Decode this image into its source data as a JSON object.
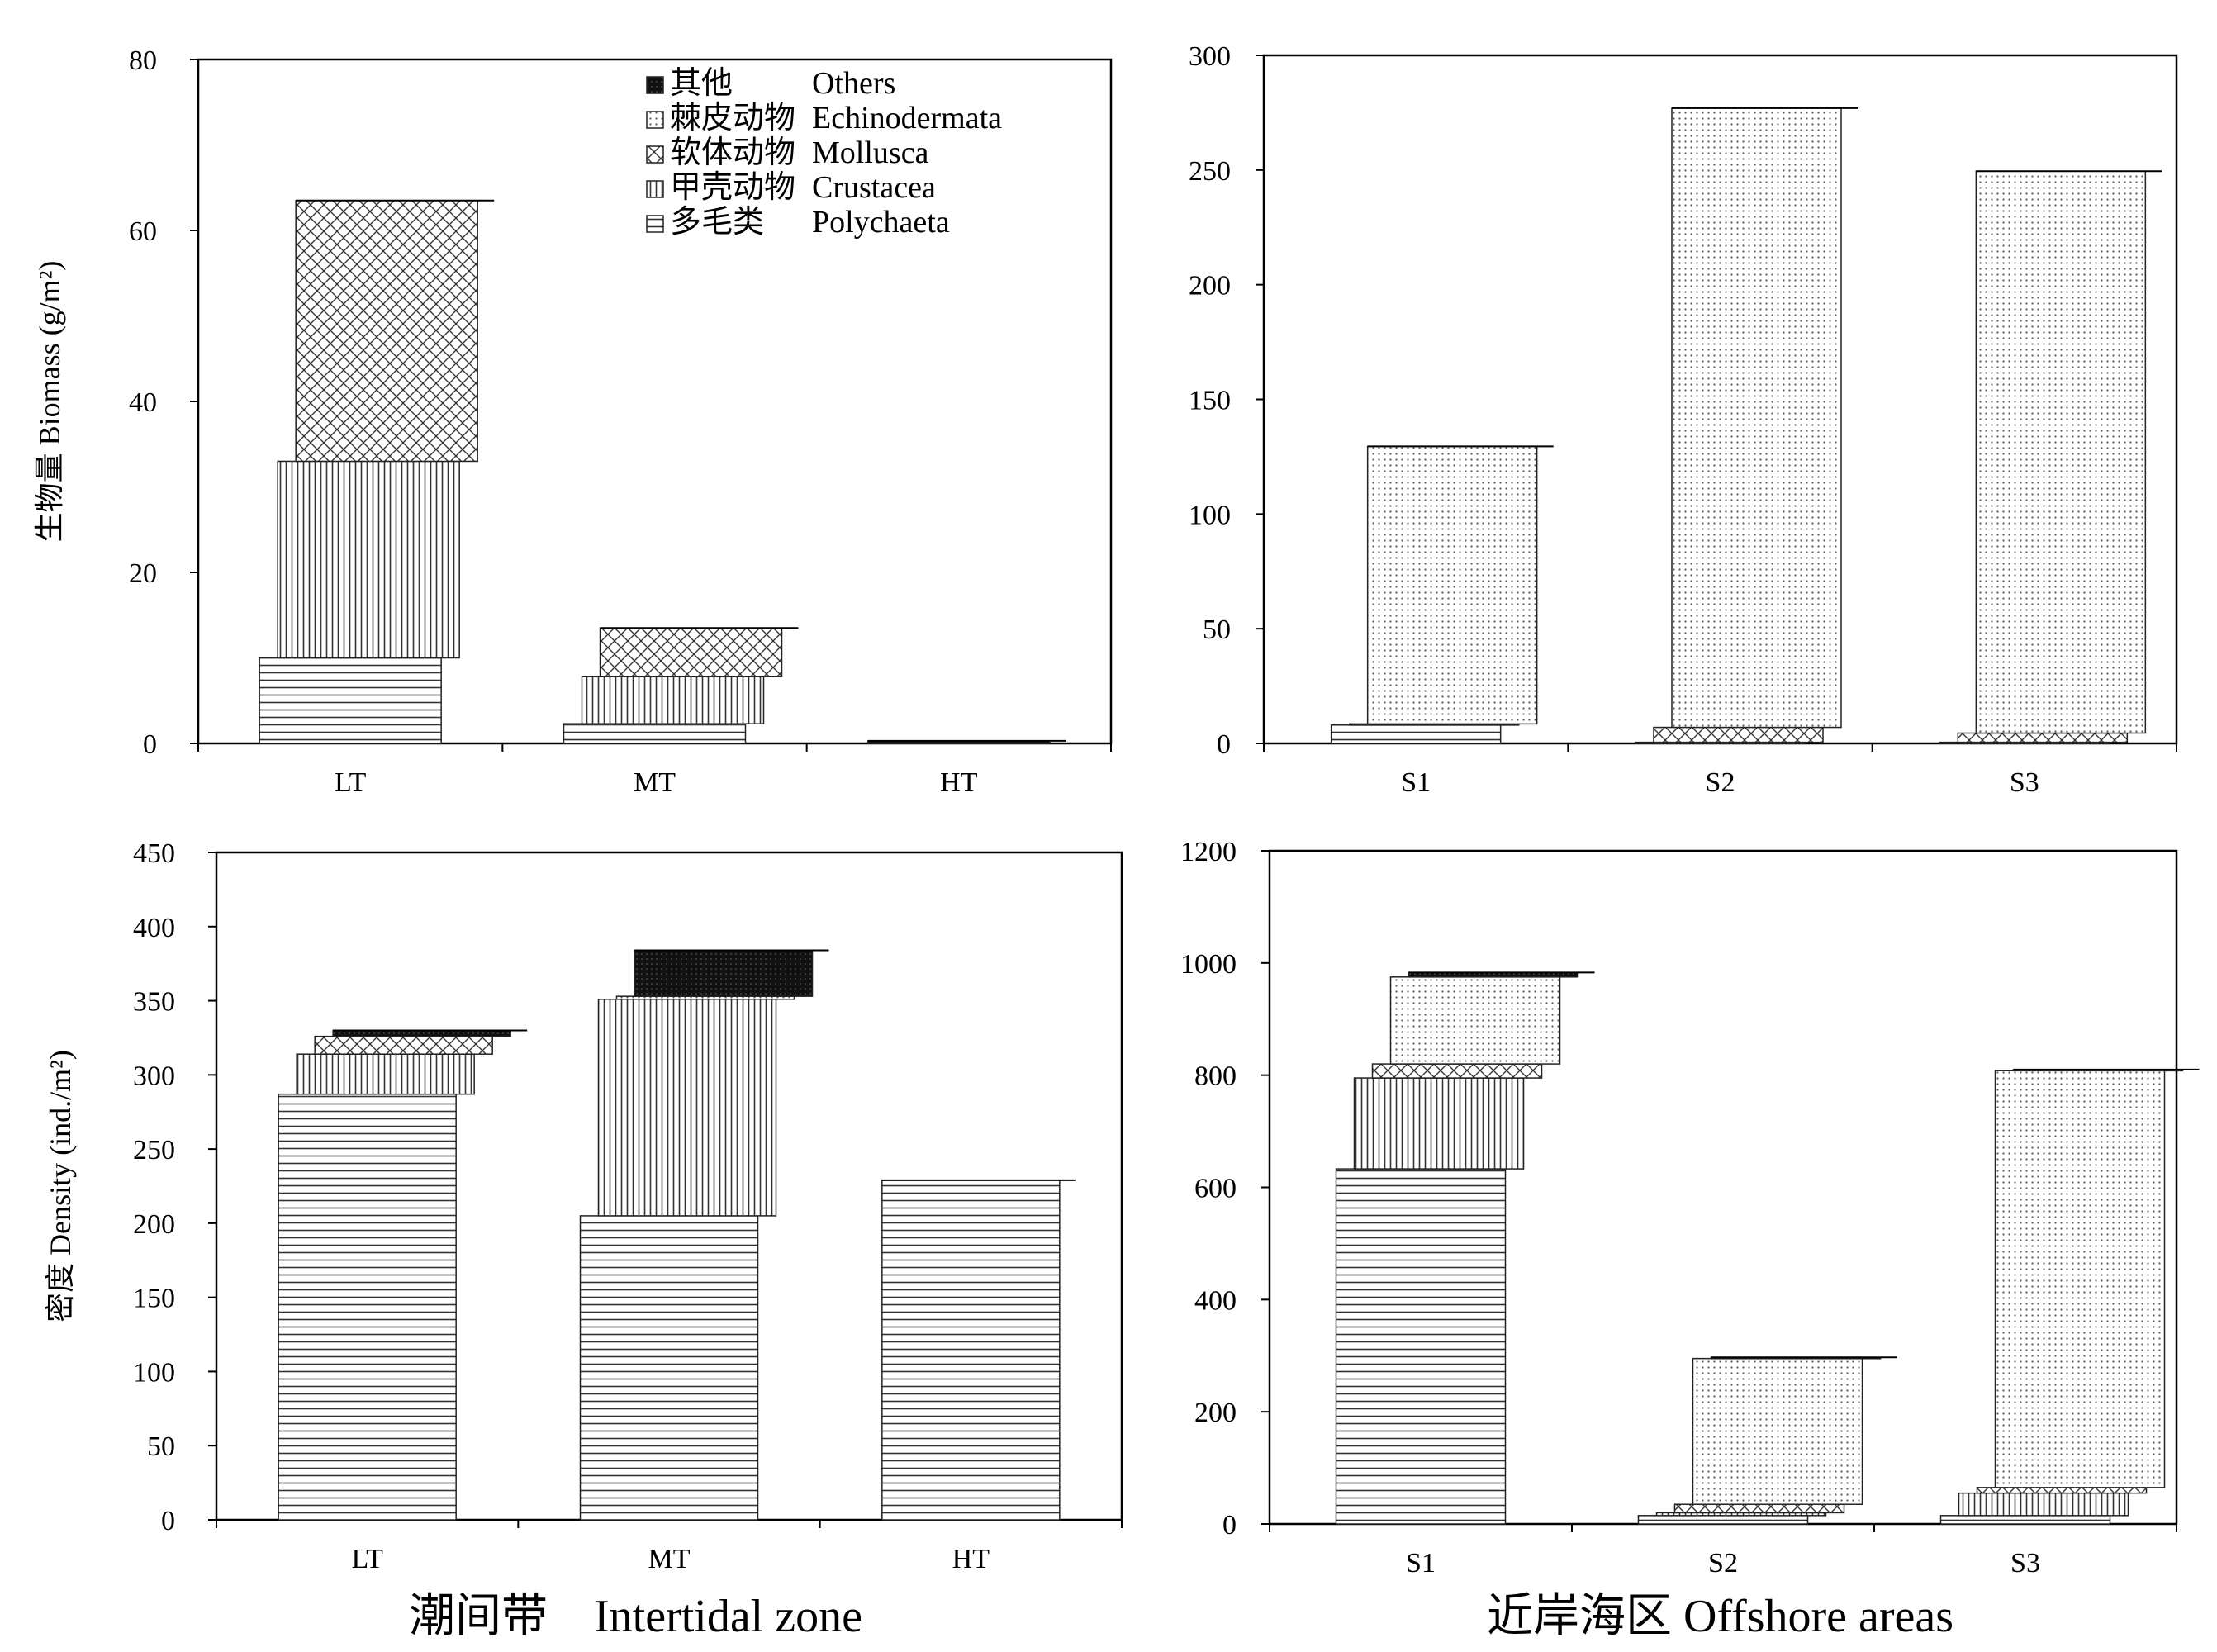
{
  "figure_captions": {
    "left": "潮间带　Intertidal zone",
    "right": "近岸海区  Offshore areas"
  },
  "legend": {
    "items": [
      {
        "key": "others",
        "cn": "其他",
        "en": "Others",
        "pattern": "black"
      },
      {
        "key": "echinodermata",
        "cn": "棘皮动物",
        "en": "Echinodermata",
        "pattern": "dots"
      },
      {
        "key": "mollusca",
        "cn": "软体动物",
        "en": "Mollusca",
        "pattern": "cross"
      },
      {
        "key": "crustacea",
        "cn": "甲壳动物",
        "en": "Crustacea",
        "pattern": "vlines"
      },
      {
        "key": "polychaeta",
        "cn": "多毛类",
        "en": "Polychaeta",
        "pattern": "hlines"
      }
    ]
  },
  "chart_data": [
    {
      "id": "biomass-intertidal",
      "type": "bar",
      "stacked": true,
      "ylabel": "生物量 Biomass (g/m²)",
      "ylim": [
        0,
        80
      ],
      "yticks": [
        0,
        20,
        40,
        60,
        80
      ],
      "categories": [
        "LT",
        "MT",
        "HT"
      ],
      "series": [
        {
          "name": "Polychaeta",
          "values": [
            10,
            2.3,
            0
          ]
        },
        {
          "name": "Crustacea",
          "values": [
            23,
            5.5,
            0
          ]
        },
        {
          "name": "Mollusca",
          "values": [
            30.5,
            5.7,
            0
          ]
        },
        {
          "name": "Echinodermata",
          "values": [
            0,
            0,
            0
          ]
        },
        {
          "name": "Others",
          "values": [
            0,
            0,
            0.3
          ]
        }
      ],
      "legend_position": "top-right"
    },
    {
      "id": "biomass-offshore",
      "type": "bar",
      "stacked": true,
      "ylabel": "",
      "ylim": [
        0,
        300
      ],
      "yticks": [
        0,
        50,
        100,
        150,
        200,
        250,
        300
      ],
      "categories": [
        "S1",
        "S2",
        "S3"
      ],
      "series": [
        {
          "name": "Polychaeta",
          "values": [
            8,
            0.5,
            0.5
          ]
        },
        {
          "name": "Crustacea",
          "values": [
            0.5,
            0,
            0
          ]
        },
        {
          "name": "Mollusca",
          "values": [
            0,
            6.5,
            4
          ]
        },
        {
          "name": "Echinodermata",
          "values": [
            121,
            270,
            245
          ]
        },
        {
          "name": "Others",
          "values": [
            0,
            0,
            0
          ]
        }
      ]
    },
    {
      "id": "density-intertidal",
      "type": "bar",
      "stacked": true,
      "ylabel": "密度 Density (ind./m²)",
      "ylim": [
        0,
        450
      ],
      "yticks": [
        0,
        50,
        100,
        150,
        200,
        250,
        300,
        350,
        400,
        450
      ],
      "categories": [
        "LT",
        "MT",
        "HT"
      ],
      "series": [
        {
          "name": "Polychaeta",
          "values": [
            287,
            205,
            229
          ]
        },
        {
          "name": "Crustacea",
          "values": [
            27,
            146,
            0
          ]
        },
        {
          "name": "Mollusca",
          "values": [
            12,
            0,
            0
          ]
        },
        {
          "name": "Echinodermata",
          "values": [
            0,
            2,
            0
          ]
        },
        {
          "name": "Others",
          "values": [
            4,
            31,
            0
          ]
        }
      ]
    },
    {
      "id": "density-offshore",
      "type": "bar",
      "stacked": true,
      "ylabel": "",
      "ylim": [
        0,
        1200
      ],
      "yticks": [
        0,
        200,
        400,
        600,
        800,
        1000,
        1200
      ],
      "categories": [
        "S1",
        "S2",
        "S3"
      ],
      "series": [
        {
          "name": "Polychaeta",
          "values": [
            633,
            15,
            15
          ]
        },
        {
          "name": "Crustacea",
          "values": [
            162,
            5,
            40
          ]
        },
        {
          "name": "Mollusca",
          "values": [
            25,
            15,
            10
          ]
        },
        {
          "name": "Echinodermata",
          "values": [
            155,
            260,
            743
          ]
        },
        {
          "name": "Others",
          "values": [
            8,
            2,
            2
          ]
        }
      ]
    }
  ]
}
